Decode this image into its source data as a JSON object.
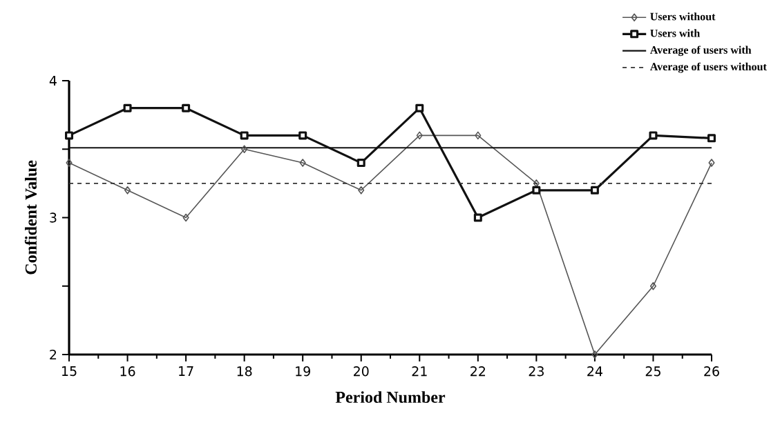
{
  "chart_data": {
    "type": "line",
    "xlabel": "Period Number",
    "ylabel": "Confident Value",
    "xlim": [
      15,
      26
    ],
    "xticks": [
      15,
      16,
      17,
      18,
      19,
      20,
      21,
      22,
      23,
      24,
      25,
      26
    ],
    "ylim": [
      2,
      4
    ],
    "yticks": [
      2,
      {
        "value": 2.5,
        "label": null
      },
      3,
      {
        "value": 3.5,
        "label": null
      },
      4
    ],
    "x": [
      15,
      16,
      17,
      18,
      19,
      20,
      21,
      22,
      23,
      24,
      25,
      26
    ],
    "legend": "top right",
    "grid": false,
    "series": [
      {
        "name": "Users without",
        "color": "#555555",
        "marker": "diamond",
        "line_style": "solid",
        "values": [
          3.4,
          3.2,
          3.0,
          3.5,
          3.4,
          3.2,
          3.6,
          3.6,
          3.25,
          2.0,
          2.5,
          3.4
        ]
      },
      {
        "name": "Users with",
        "color": "#111111",
        "marker": "square",
        "line_style": "solid",
        "values": [
          3.6,
          3.8,
          3.8,
          3.6,
          3.6,
          3.4,
          3.8,
          3.0,
          3.2,
          3.2,
          3.6,
          3.58
        ]
      },
      {
        "name": "Average of users with",
        "color": "#111111",
        "marker": "none",
        "line_style": "solid",
        "values": [
          3.51,
          3.51,
          3.51,
          3.51,
          3.51,
          3.51,
          3.51,
          3.51,
          3.51,
          3.51,
          3.51,
          3.51
        ]
      },
      {
        "name": "Average of users without",
        "color": "#333333",
        "marker": "none",
        "line_style": "dashed",
        "values": [
          3.25,
          3.25,
          3.25,
          3.25,
          3.25,
          3.25,
          3.25,
          3.25,
          3.25,
          3.25,
          3.25,
          3.25
        ]
      }
    ]
  }
}
